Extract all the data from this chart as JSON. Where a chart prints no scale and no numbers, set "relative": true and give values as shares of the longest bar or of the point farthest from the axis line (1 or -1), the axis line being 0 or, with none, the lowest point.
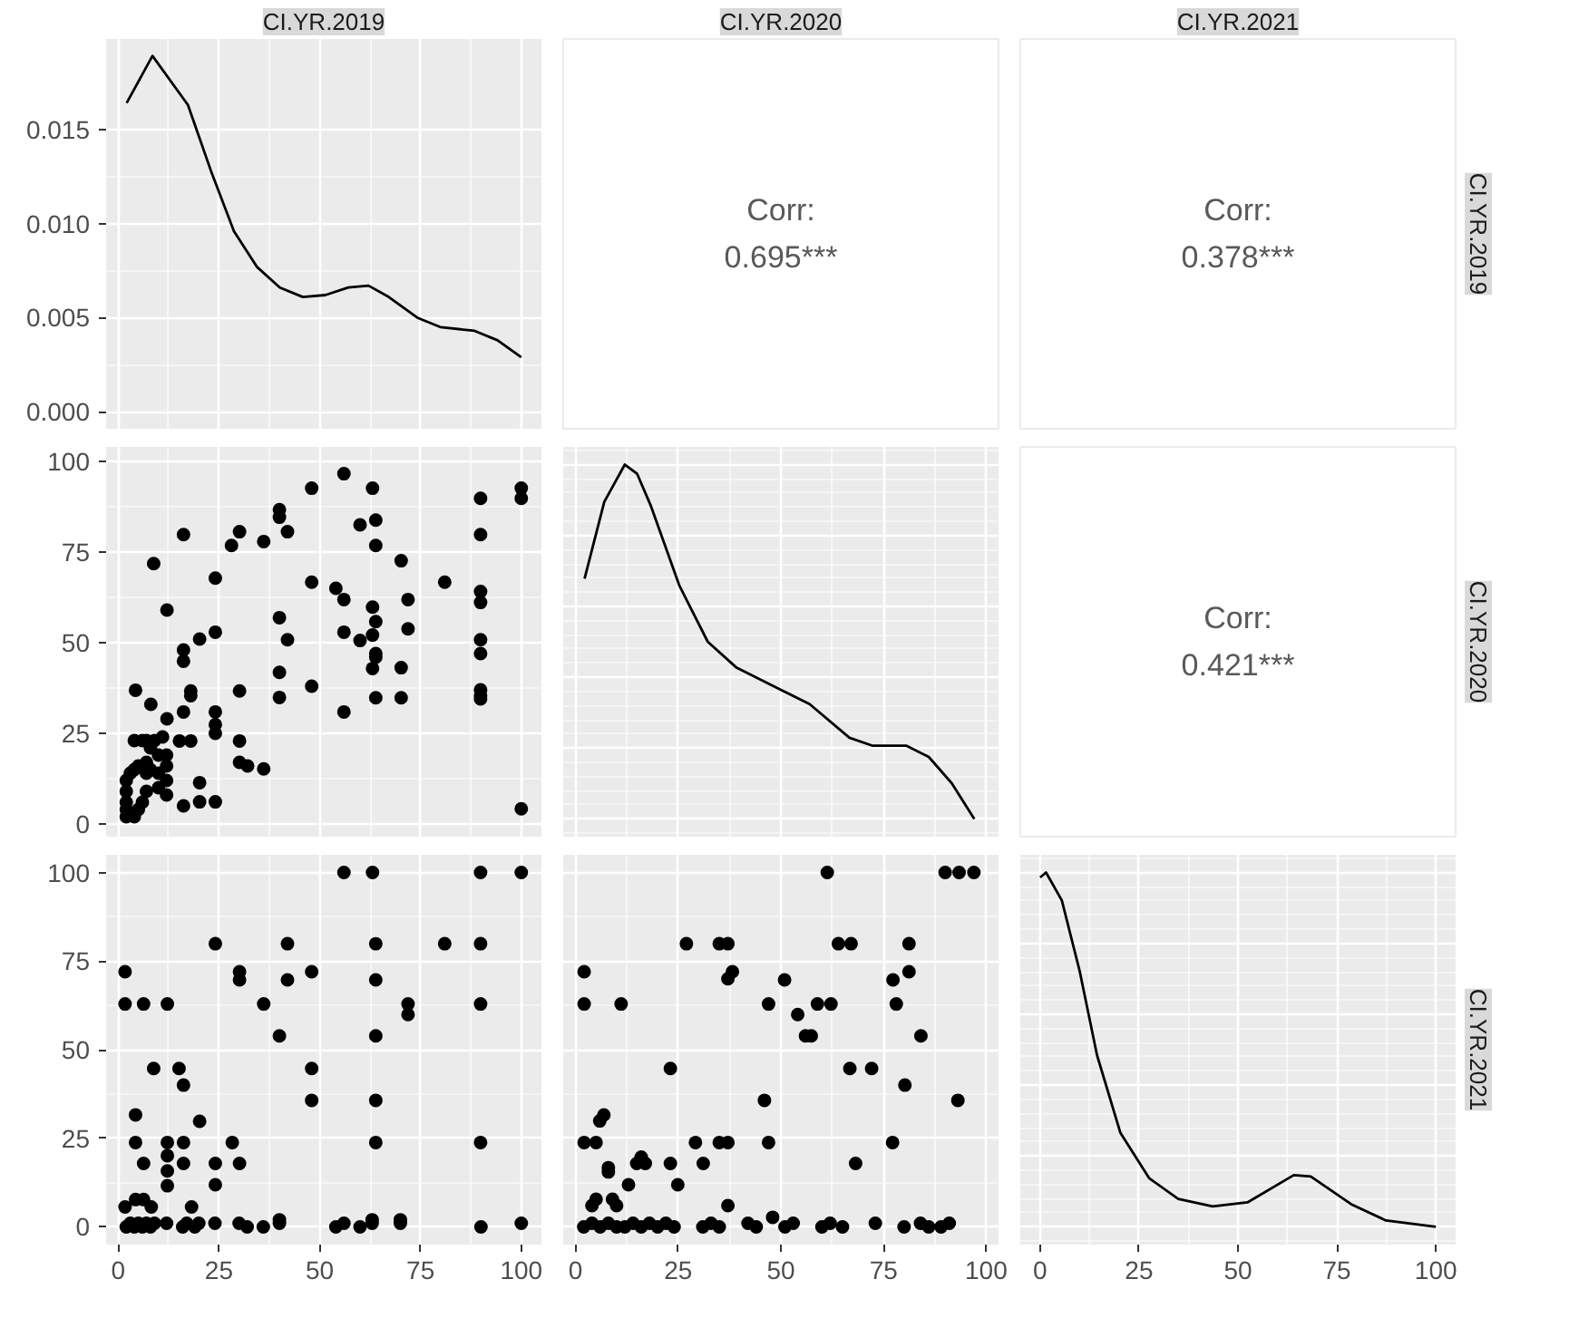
{
  "chart_data": [
    {
      "type": "line",
      "title": "CI.YR.2019",
      "grid": true,
      "tick_labels": "y",
      "xlim": [
        -3,
        105
      ],
      "xticks": [
        0,
        25,
        50,
        75,
        100
      ],
      "ylim": [
        -0.0009,
        0.0198
      ],
      "yticks": [
        {
          "value": 0,
          "label": "0.000"
        },
        {
          "value": 0.005,
          "label": "0.005"
        },
        {
          "value": 0.01,
          "label": "0.010"
        },
        {
          "value": 0.015,
          "label": "0.015"
        }
      ],
      "series": [
        {
          "color": "#000000",
          "x": [
            2.1,
            8.5,
            17.3,
            23,
            28.7,
            34.4,
            40.1,
            45.8,
            51.4,
            57.1,
            62.1,
            67.1,
            74.2,
            79.9,
            88.4,
            94.1,
            100
          ],
          "values": [
            0.0164,
            0.0189,
            0.0163,
            0.0128,
            0.0096,
            0.0077,
            0.0066,
            0.0061,
            0.0062,
            0.0066,
            0.0067,
            0.0061,
            0.005,
            0.0045,
            0.0043,
            0.0038,
            0.0029
          ]
        }
      ]
    },
    {
      "type": "other",
      "title": "CI.YR.2020",
      "annotations": [
        "Corr:",
        "0.695***"
      ]
    },
    {
      "type": "other",
      "title": "CI.YR.2021",
      "y2label": "CI.YR.2019",
      "annotations": [
        "Corr:",
        "0.378***"
      ]
    },
    {
      "type": "scatter",
      "grid": true,
      "tick_labels": "y",
      "marker": "circle",
      "xlim": [
        -3,
        105
      ],
      "xticks": [
        0,
        25,
        50,
        75,
        100
      ],
      "ylim": [
        -3.5,
        104
      ],
      "yticks": [
        0,
        25,
        50,
        75,
        100
      ],
      "series": [
        {
          "color": "#000000",
          "x": [
            8.8,
            16.2,
            12.1,
            4.3,
            8.1,
            16.2,
            16.2,
            16.2,
            12.1,
            18,
            18,
            20.2,
            24.1,
            24.1,
            24.1,
            24.1,
            24.1,
            28.1,
            30.1,
            36.1,
            40,
            42,
            40,
            42,
            40,
            40,
            48,
            48,
            30.1,
            30.1,
            30.1,
            32.1,
            36.1,
            20.2,
            16.2,
            20.2,
            24.1,
            15.2,
            18,
            54,
            56,
            56,
            56,
            60,
            60,
            63.9,
            63.9,
            63.1,
            63.9,
            63.1,
            63.9,
            63.9,
            63.1,
            63.9,
            70.2,
            71.9,
            71.9,
            70.2,
            70.2,
            81,
            89.9,
            89.9,
            89.9,
            89.9,
            89.9,
            89.9,
            89.9,
            89.9,
            100,
            40,
            48,
            56,
            63.1,
            89.9,
            100,
            100,
            2,
            2,
            2,
            2,
            2,
            3,
            4,
            4,
            5,
            5,
            6,
            6,
            7,
            7,
            7,
            8,
            8,
            9,
            10,
            10,
            10,
            11,
            12,
            12,
            12,
            12,
            4,
            7
          ],
          "values": [
            71.8,
            79.8,
            59,
            36.9,
            33,
            48,
            44.9,
            30.9,
            29,
            36.7,
            35.4,
            51,
            67.8,
            52.9,
            30.9,
            27.4,
            25,
            76.8,
            80.6,
            77.9,
            84.6,
            80.6,
            56.9,
            50.8,
            41.8,
            34.9,
            66.7,
            38,
            36.7,
            22.9,
            17,
            16,
            15.2,
            11.4,
            5,
            6.1,
            6.1,
            22.9,
            22.9,
            65,
            61.9,
            52.9,
            30.9,
            50.6,
            82.5,
            83.8,
            76.8,
            59.8,
            55.8,
            52.1,
            47,
            46,
            42.9,
            34.8,
            72.6,
            61.9,
            53.8,
            43.1,
            34.8,
            66.7,
            79.8,
            64.1,
            61.1,
            50.8,
            47,
            37,
            35.4,
            34.5,
            4.2,
            86.7,
            92.6,
            96.6,
            92.6,
            89.8,
            92.6,
            89.8,
            2,
            4,
            6,
            9,
            12,
            14,
            2,
            15,
            4,
            16,
            6,
            23,
            9,
            14,
            17,
            15,
            21,
            23,
            10,
            14,
            19,
            24,
            8,
            12,
            16,
            19,
            23,
            23
          ]
        }
      ]
    },
    {
      "type": "line",
      "relative": true,
      "grid": true,
      "tick_labels": false,
      "xlim": [
        -3,
        103
      ],
      "xticks": [
        0,
        25,
        50,
        75,
        100
      ],
      "series": [
        {
          "color": "#000000",
          "x": [
            2.2,
            7,
            12,
            15,
            18.4,
            25.3,
            32.2,
            39.1,
            50.1,
            57,
            66.7,
            72.2,
            80.5,
            86,
            91.6,
            97.1
          ],
          "values": [
            0.678,
            0.895,
            1,
            0.974,
            0.882,
            0.658,
            0.5,
            0.428,
            0.364,
            0.324,
            0.229,
            0.207,
            0.207,
            0.175,
            0.101,
            0
          ]
        }
      ]
    },
    {
      "type": "other",
      "y2label": "CI.YR.2020",
      "annotations": [
        "Corr:",
        "0.421***"
      ]
    },
    {
      "type": "scatter",
      "grid": true,
      "marker": "circle",
      "xlim": [
        -3,
        105
      ],
      "xticks": [
        0,
        25,
        50,
        75,
        100
      ],
      "ylim": [
        -5,
        105
      ],
      "yticks": [
        0,
        25,
        50,
        75,
        100
      ],
      "series": [
        {
          "color": "#000000",
          "x": [
            1.7,
            1.7,
            6.3,
            12.2,
            8.8,
            15.1,
            16.2,
            4.3,
            20.2,
            4.3,
            12.2,
            16.2,
            28.3,
            6.3,
            12.2,
            12.2,
            16.2,
            24.1,
            30.1,
            12.2,
            24.1,
            24.1,
            30.1,
            30.1,
            36.1,
            42,
            42,
            40,
            48,
            48,
            48,
            56,
            63.1,
            63.9,
            63.9,
            63.9,
            63.9,
            63.9,
            71.9,
            71.9,
            81,
            89.9,
            89.9,
            89.9,
            89.9,
            100,
            1.7,
            4.3,
            6.3,
            8.2,
            18.2,
            2,
            3,
            4,
            5,
            6,
            7,
            8,
            9,
            12,
            16,
            17,
            19,
            20,
            24,
            30,
            32,
            36,
            40,
            54,
            56,
            60,
            63,
            70,
            90,
            100,
            40,
            63,
            70
          ],
          "values": [
            72,
            62.9,
            62.9,
            62.9,
            44.7,
            44.7,
            40,
            31.6,
            29.8,
            23.8,
            23.8,
            23.8,
            23.8,
            17.9,
            20.1,
            15.8,
            17.9,
            17.9,
            17.9,
            11.6,
            11.9,
            79.9,
            72,
            69.7,
            62.9,
            79.9,
            69.7,
            53.9,
            72,
            44.7,
            35.7,
            100,
            100,
            79.9,
            69.7,
            53.9,
            35.7,
            23.8,
            62.9,
            59.9,
            79.9,
            100,
            79.9,
            62.9,
            23.8,
            100,
            5.6,
            7.7,
            7.7,
            5.6,
            5.6,
            0,
            1,
            0,
            1,
            0,
            1,
            0,
            1,
            1,
            0,
            1,
            0,
            1,
            1,
            1,
            0,
            0,
            1,
            0,
            1,
            0,
            1,
            1,
            0,
            1,
            2,
            2,
            2
          ]
        }
      ]
    },
    {
      "type": "scatter",
      "grid": true,
      "tick_labels": "x",
      "marker": "circle",
      "xlim": [
        -3,
        103
      ],
      "xticks": [
        0,
        25,
        50,
        75,
        100
      ],
      "ylim": [
        -5,
        105
      ],
      "yticks": [
        0,
        25,
        50,
        75,
        100
      ],
      "series": [
        {
          "color": "#000000",
          "x": [
            61.3,
            90,
            93.4,
            97,
            27,
            35,
            37.1,
            64,
            67.1,
            81.2,
            2.1,
            38.2,
            37.1,
            50.9,
            77.3,
            81.2,
            2.1,
            11.1,
            47,
            58.9,
            62.2,
            78.1,
            54.1,
            56,
            57.4,
            84.1,
            23.1,
            66.8,
            72.1,
            80.2,
            46,
            93.1,
            5.9,
            6.9,
            2.1,
            5,
            29.2,
            35,
            37.1,
            47,
            77.2,
            16,
            14.9,
            17,
            23.1,
            8,
            8,
            31.1,
            68.2,
            12.9,
            24.9,
            5,
            4,
            9,
            10,
            37.1,
            48,
            2,
            4,
            6,
            8,
            10,
            12,
            14,
            16,
            18,
            20,
            22,
            24,
            31,
            33,
            35,
            42,
            44,
            51,
            53,
            60,
            62,
            65,
            73,
            80,
            84,
            86,
            89,
            91
          ],
          "values": [
            100,
            100,
            100,
            100,
            79.9,
            79.9,
            79.9,
            79.9,
            79.9,
            79.9,
            72,
            72,
            70,
            69.7,
            69.7,
            72,
            62.9,
            62.9,
            62.9,
            62.9,
            62.9,
            62.9,
            59.9,
            53.9,
            53.9,
            53.9,
            44.7,
            44.7,
            44.7,
            40,
            35.7,
            35.7,
            29.9,
            31.6,
            23.8,
            23.8,
            23.8,
            23.8,
            23.8,
            23.8,
            23.8,
            19.7,
            17.9,
            17.9,
            17.9,
            16.7,
            15.5,
            17.9,
            17.9,
            11.9,
            11.9,
            7.8,
            6,
            7.8,
            6,
            6,
            2.7,
            0,
            1,
            0,
            1,
            0,
            0,
            1,
            0,
            1,
            0,
            1,
            0,
            0,
            1,
            0,
            1,
            0,
            0,
            1,
            0,
            1,
            0,
            1,
            0,
            1,
            0,
            0,
            1
          ]
        }
      ]
    },
    {
      "type": "line",
      "relative": true,
      "grid": true,
      "tick_labels": "x",
      "y2label": "CI.YR.2021",
      "xlim": [
        -5,
        105
      ],
      "xticks": [
        0,
        25,
        50,
        75,
        100
      ],
      "series": [
        {
          "color": "#000000",
          "x": [
            0,
            1.5,
            5.5,
            10,
            14.4,
            20.3,
            27.6,
            34.9,
            43.6,
            52.4,
            64.1,
            68.4,
            78.6,
            87.4,
            100
          ],
          "values": [
            0.986,
            1,
            0.921,
            0.722,
            0.484,
            0.265,
            0.137,
            0.079,
            0.058,
            0.069,
            0.146,
            0.142,
            0.064,
            0.018,
            0
          ]
        }
      ]
    }
  ]
}
